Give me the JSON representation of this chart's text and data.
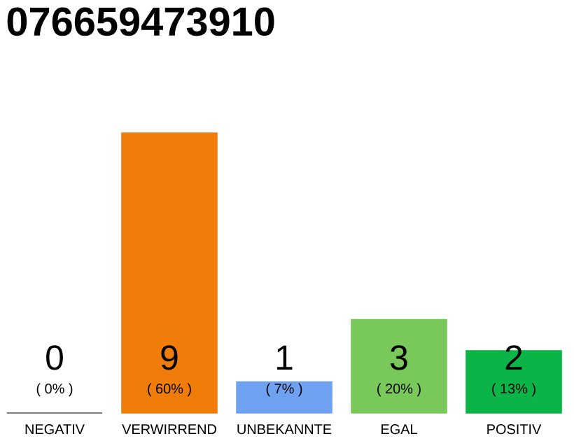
{
  "chart_data": {
    "type": "bar",
    "title": "076659473910",
    "categories": [
      "NEGATIV",
      "VERWIRREND",
      "UNBEKANNTE",
      "EGAL",
      "POSITIV"
    ],
    "values": [
      0,
      9,
      1,
      3,
      2
    ],
    "colors": [
      "#555555",
      "#f07d0a",
      "#6ea1f0",
      "#78c85a",
      "#0ab446"
    ],
    "data_labels": true,
    "annotations": [
      "( 0% )",
      "( 60% )",
      "( 7% )",
      "( 20% )",
      "( 13% )"
    ]
  }
}
